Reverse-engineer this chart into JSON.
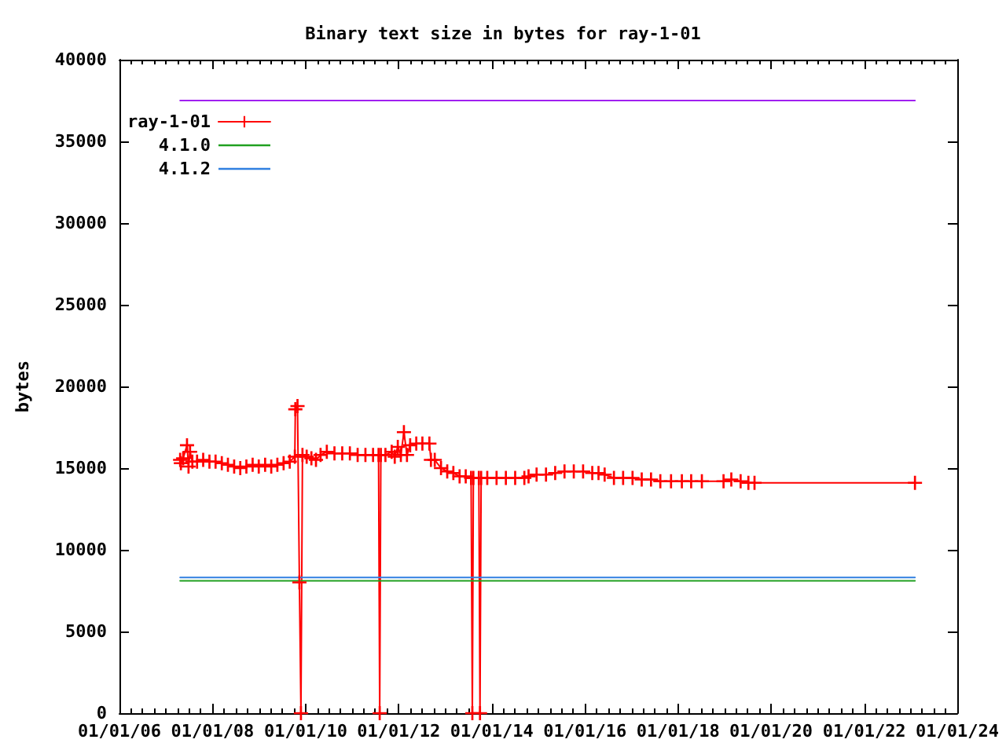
{
  "chart_data": {
    "type": "line",
    "title": "Binary text size in bytes for ray-1-01",
    "ylabel": "bytes",
    "xlim": [
      "2006-01-01",
      "2024-01-01"
    ],
    "xticks": [
      {
        "value": "2006-01-01",
        "label": "01/01/06"
      },
      {
        "value": "2006-04-01",
        "label": null
      },
      {
        "value": "2006-07-01",
        "label": null
      },
      {
        "value": "2006-10-01",
        "label": null
      },
      {
        "value": "2007-01-01",
        "label": null
      },
      {
        "value": "2007-04-01",
        "label": null
      },
      {
        "value": "2007-07-01",
        "label": null
      },
      {
        "value": "2007-10-01",
        "label": null
      },
      {
        "value": "2008-01-01",
        "label": "01/01/08"
      },
      {
        "value": "2008-04-01",
        "label": null
      },
      {
        "value": "2008-07-01",
        "label": null
      },
      {
        "value": "2008-10-01",
        "label": null
      },
      {
        "value": "2009-01-01",
        "label": null
      },
      {
        "value": "2009-04-01",
        "label": null
      },
      {
        "value": "2009-07-01",
        "label": null
      },
      {
        "value": "2009-10-01",
        "label": null
      },
      {
        "value": "2010-01-01",
        "label": "01/01/10"
      },
      {
        "value": "2010-04-01",
        "label": null
      },
      {
        "value": "2010-07-01",
        "label": null
      },
      {
        "value": "2010-10-01",
        "label": null
      },
      {
        "value": "2011-01-01",
        "label": null
      },
      {
        "value": "2011-04-01",
        "label": null
      },
      {
        "value": "2011-07-01",
        "label": null
      },
      {
        "value": "2011-10-01",
        "label": null
      },
      {
        "value": "2012-01-01",
        "label": "01/01/12"
      },
      {
        "value": "2012-04-01",
        "label": null
      },
      {
        "value": "2012-07-01",
        "label": null
      },
      {
        "value": "2012-10-01",
        "label": null
      },
      {
        "value": "2013-01-01",
        "label": null
      },
      {
        "value": "2013-04-01",
        "label": null
      },
      {
        "value": "2013-07-01",
        "label": null
      },
      {
        "value": "2013-10-01",
        "label": null
      },
      {
        "value": "2014-01-01",
        "label": "01/01/14"
      },
      {
        "value": "2014-04-01",
        "label": null
      },
      {
        "value": "2014-07-01",
        "label": null
      },
      {
        "value": "2014-10-01",
        "label": null
      },
      {
        "value": "2015-01-01",
        "label": null
      },
      {
        "value": "2015-04-01",
        "label": null
      },
      {
        "value": "2015-07-01",
        "label": null
      },
      {
        "value": "2015-10-01",
        "label": null
      },
      {
        "value": "2016-01-01",
        "label": "01/01/16"
      },
      {
        "value": "2016-04-01",
        "label": null
      },
      {
        "value": "2016-07-01",
        "label": null
      },
      {
        "value": "2016-10-01",
        "label": null
      },
      {
        "value": "2017-01-01",
        "label": null
      },
      {
        "value": "2017-04-01",
        "label": null
      },
      {
        "value": "2017-07-01",
        "label": null
      },
      {
        "value": "2017-10-01",
        "label": null
      },
      {
        "value": "2018-01-01",
        "label": "01/01/18"
      },
      {
        "value": "2018-04-01",
        "label": null
      },
      {
        "value": "2018-07-01",
        "label": null
      },
      {
        "value": "2018-10-01",
        "label": null
      },
      {
        "value": "2019-01-01",
        "label": null
      },
      {
        "value": "2019-04-01",
        "label": null
      },
      {
        "value": "2019-07-01",
        "label": null
      },
      {
        "value": "2019-10-01",
        "label": null
      },
      {
        "value": "2020-01-01",
        "label": "01/01/20"
      },
      {
        "value": "2020-04-01",
        "label": null
      },
      {
        "value": "2020-07-01",
        "label": null
      },
      {
        "value": "2020-10-01",
        "label": null
      },
      {
        "value": "2021-01-01",
        "label": null
      },
      {
        "value": "2021-04-01",
        "label": null
      },
      {
        "value": "2021-07-01",
        "label": null
      },
      {
        "value": "2021-10-01",
        "label": null
      },
      {
        "value": "2022-01-01",
        "label": "01/01/22"
      },
      {
        "value": "2022-04-01",
        "label": null
      },
      {
        "value": "2022-07-01",
        "label": null
      },
      {
        "value": "2022-10-01",
        "label": null
      },
      {
        "value": "2023-01-01",
        "label": null
      },
      {
        "value": "2023-04-01",
        "label": null
      },
      {
        "value": "2023-07-01",
        "label": null
      },
      {
        "value": "2023-10-01",
        "label": null
      },
      {
        "value": "2024-01-01",
        "label": "01/01/24"
      }
    ],
    "ylim": [
      0,
      40000
    ],
    "yticks": [
      0,
      5000,
      10000,
      15000,
      20000,
      25000,
      30000,
      35000,
      40000
    ],
    "grid": false,
    "legend": "top left",
    "marker": "cross",
    "line_style": "solid",
    "series": [
      {
        "name": "ray-1-01",
        "color": "#ff0000",
        "x": [
          "2007-04-22",
          "2007-04-28",
          "2007-05-16",
          "2007-06-15",
          "2007-06-27",
          "2007-07-09",
          "2007-07-27",
          "2007-09-02",
          "2007-10-20",
          "2007-12-08",
          "2008-01-25",
          "2008-03-14",
          "2008-05-01",
          "2008-06-19",
          "2008-08-06",
          "2008-09-23",
          "2008-11-11",
          "2008-12-29",
          "2009-02-17",
          "2009-04-06",
          "2009-05-24",
          "2009-07-12",
          "2009-08-29",
          "2009-10-08",
          "2009-10-12",
          "2009-10-29",
          "2009-11-13",
          "2009-11-25",
          "2009-12-07",
          "2010-01-09",
          "2010-02-15",
          "2010-03-23",
          "2010-04-28",
          "2010-06-16",
          "2010-08-15",
          "2010-10-15",
          "2010-12-14",
          "2011-02-13",
          "2011-04-15",
          "2011-06-14",
          "2011-07-27",
          "2011-08-05",
          "2011-08-14",
          "2011-09-19",
          "2011-11-07",
          "2011-12-01",
          "2011-12-25",
          "2012-01-18",
          "2012-02-11",
          "2012-03-06",
          "2012-03-31",
          "2012-05-18",
          "2012-07-05",
          "2012-08-29",
          "2012-09-10",
          "2012-10-10",
          "2012-11-28",
          "2013-01-16",
          "2013-03-05",
          "2013-04-23",
          "2013-06-10",
          "2013-07-22",
          "2013-08-01",
          "2013-08-09",
          "2013-09-21",
          "2013-09-30",
          "2013-10-09",
          "2013-11-26",
          "2014-02-07",
          "2014-04-21",
          "2014-07-03",
          "2014-09-13",
          "2014-10-16",
          "2014-12-18",
          "2015-03-02",
          "2015-05-13",
          "2015-07-25",
          "2015-10-06",
          "2015-12-18",
          "2016-02-28",
          "2016-04-17",
          "2016-06-04",
          "2016-08-16",
          "2016-10-27",
          "2017-01-09",
          "2017-03-22",
          "2017-06-03",
          "2017-08-15",
          "2017-11-07",
          "2018-01-31",
          "2018-04-14",
          "2018-07-07",
          "2018-12-24",
          "2019-02-23",
          "2019-05-07",
          "2019-07-07",
          "2019-08-24",
          "2023-02-03"
        ],
        "values": [
          15500,
          15300,
          15600,
          16400,
          15100,
          16000,
          15400,
          15400,
          15500,
          15400,
          15400,
          15300,
          15200,
          15100,
          15000,
          15100,
          15200,
          15100,
          15200,
          15100,
          15200,
          15300,
          15400,
          15700,
          18600,
          18800,
          8000,
          0,
          15800,
          15700,
          15600,
          15500,
          15800,
          16000,
          15900,
          15900,
          15900,
          15800,
          15800,
          15800,
          15800,
          0,
          15800,
          15800,
          16000,
          15700,
          16300,
          15800,
          17200,
          15800,
          16400,
          16500,
          16500,
          16500,
          15500,
          15500,
          15000,
          14800,
          14700,
          14500,
          14500,
          14400,
          0,
          14400,
          14400,
          0,
          14400,
          14400,
          14400,
          14400,
          14400,
          14400,
          14500,
          14600,
          14600,
          14700,
          14800,
          14800,
          14800,
          14700,
          14700,
          14600,
          14400,
          14400,
          14400,
          14300,
          14300,
          14200,
          14200,
          14200,
          14200,
          14200,
          14200,
          14300,
          14200,
          14100,
          14100,
          14100
        ]
      },
      {
        "name": "4.1.0",
        "color": "#20a020",
        "marker": "none",
        "x": [
          "2007-04-22",
          "2023-02-03"
        ],
        "values": [
          8100,
          8100
        ]
      },
      {
        "name": "4.1.2",
        "color": "#3080e0",
        "marker": "none",
        "x": [
          "2007-04-22",
          "2023-02-03"
        ],
        "values": [
          8300,
          8300
        ]
      },
      {
        "color": "#a020f0",
        "marker": "none",
        "x": [
          "2007-04-22",
          "2023-02-03"
        ],
        "values": [
          37500,
          37500
        ]
      }
    ]
  }
}
